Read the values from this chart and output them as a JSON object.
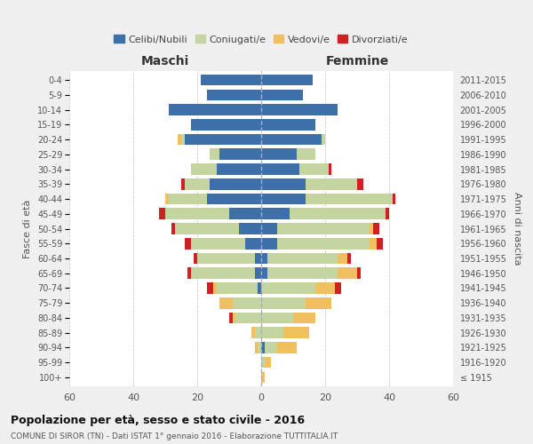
{
  "age_groups": [
    "100+",
    "95-99",
    "90-94",
    "85-89",
    "80-84",
    "75-79",
    "70-74",
    "65-69",
    "60-64",
    "55-59",
    "50-54",
    "45-49",
    "40-44",
    "35-39",
    "30-34",
    "25-29",
    "20-24",
    "15-19",
    "10-14",
    "5-9",
    "0-4"
  ],
  "birth_years": [
    "≤ 1915",
    "1916-1920",
    "1921-1925",
    "1926-1930",
    "1931-1935",
    "1936-1940",
    "1941-1945",
    "1946-1950",
    "1951-1955",
    "1956-1960",
    "1961-1965",
    "1966-1970",
    "1971-1975",
    "1976-1980",
    "1981-1985",
    "1986-1990",
    "1991-1995",
    "1996-2000",
    "2001-2005",
    "2006-2010",
    "2011-2015"
  ],
  "maschi": {
    "celibe": [
      0,
      0,
      0,
      0,
      0,
      0,
      1,
      2,
      2,
      5,
      7,
      10,
      17,
      16,
      14,
      13,
      24,
      22,
      29,
      17,
      19
    ],
    "coniugato": [
      0,
      0,
      1,
      2,
      8,
      9,
      13,
      20,
      18,
      17,
      20,
      20,
      12,
      8,
      8,
      3,
      1,
      0,
      0,
      0,
      0
    ],
    "vedovo": [
      0,
      0,
      1,
      1,
      1,
      4,
      1,
      0,
      0,
      0,
      0,
      0,
      1,
      0,
      0,
      0,
      1,
      0,
      0,
      0,
      0
    ],
    "divorziato": [
      0,
      0,
      0,
      0,
      1,
      0,
      2,
      1,
      1,
      2,
      1,
      2,
      0,
      1,
      0,
      0,
      0,
      0,
      0,
      0,
      0
    ]
  },
  "femmine": {
    "nubile": [
      0,
      0,
      1,
      0,
      0,
      0,
      0,
      2,
      2,
      5,
      5,
      9,
      14,
      14,
      12,
      11,
      19,
      17,
      24,
      13,
      16
    ],
    "coniugata": [
      0,
      1,
      4,
      7,
      10,
      14,
      17,
      22,
      22,
      29,
      29,
      30,
      27,
      16,
      9,
      6,
      1,
      0,
      0,
      0,
      0
    ],
    "vedova": [
      1,
      2,
      6,
      8,
      7,
      8,
      6,
      6,
      3,
      2,
      1,
      0,
      0,
      0,
      0,
      0,
      0,
      0,
      0,
      0,
      0
    ],
    "divorziata": [
      0,
      0,
      0,
      0,
      0,
      0,
      2,
      1,
      1,
      2,
      2,
      1,
      1,
      2,
      1,
      0,
      0,
      0,
      0,
      0,
      0
    ]
  },
  "colors": {
    "celibe": "#3d6fa8",
    "coniugato": "#c5d5a0",
    "vedovo": "#f0c060",
    "divorziato": "#cc2222"
  },
  "title": "Popolazione per età, sesso e stato civile - 2016",
  "subtitle": "COMUNE DI SIROR (TN) - Dati ISTAT 1° gennaio 2016 - Elaborazione TUTTITALIA.IT",
  "xlabel_left": "Maschi",
  "xlabel_right": "Femmine",
  "ylabel_left": "Fasce di età",
  "ylabel_right": "Anni di nascita",
  "xlim": 60,
  "legend_labels": [
    "Celibi/Nubili",
    "Coniugati/e",
    "Vedovi/e",
    "Divorziati/e"
  ],
  "bg_color": "#f0f0f0",
  "plot_bg": "#ffffff",
  "grid_color": "#cccccc"
}
